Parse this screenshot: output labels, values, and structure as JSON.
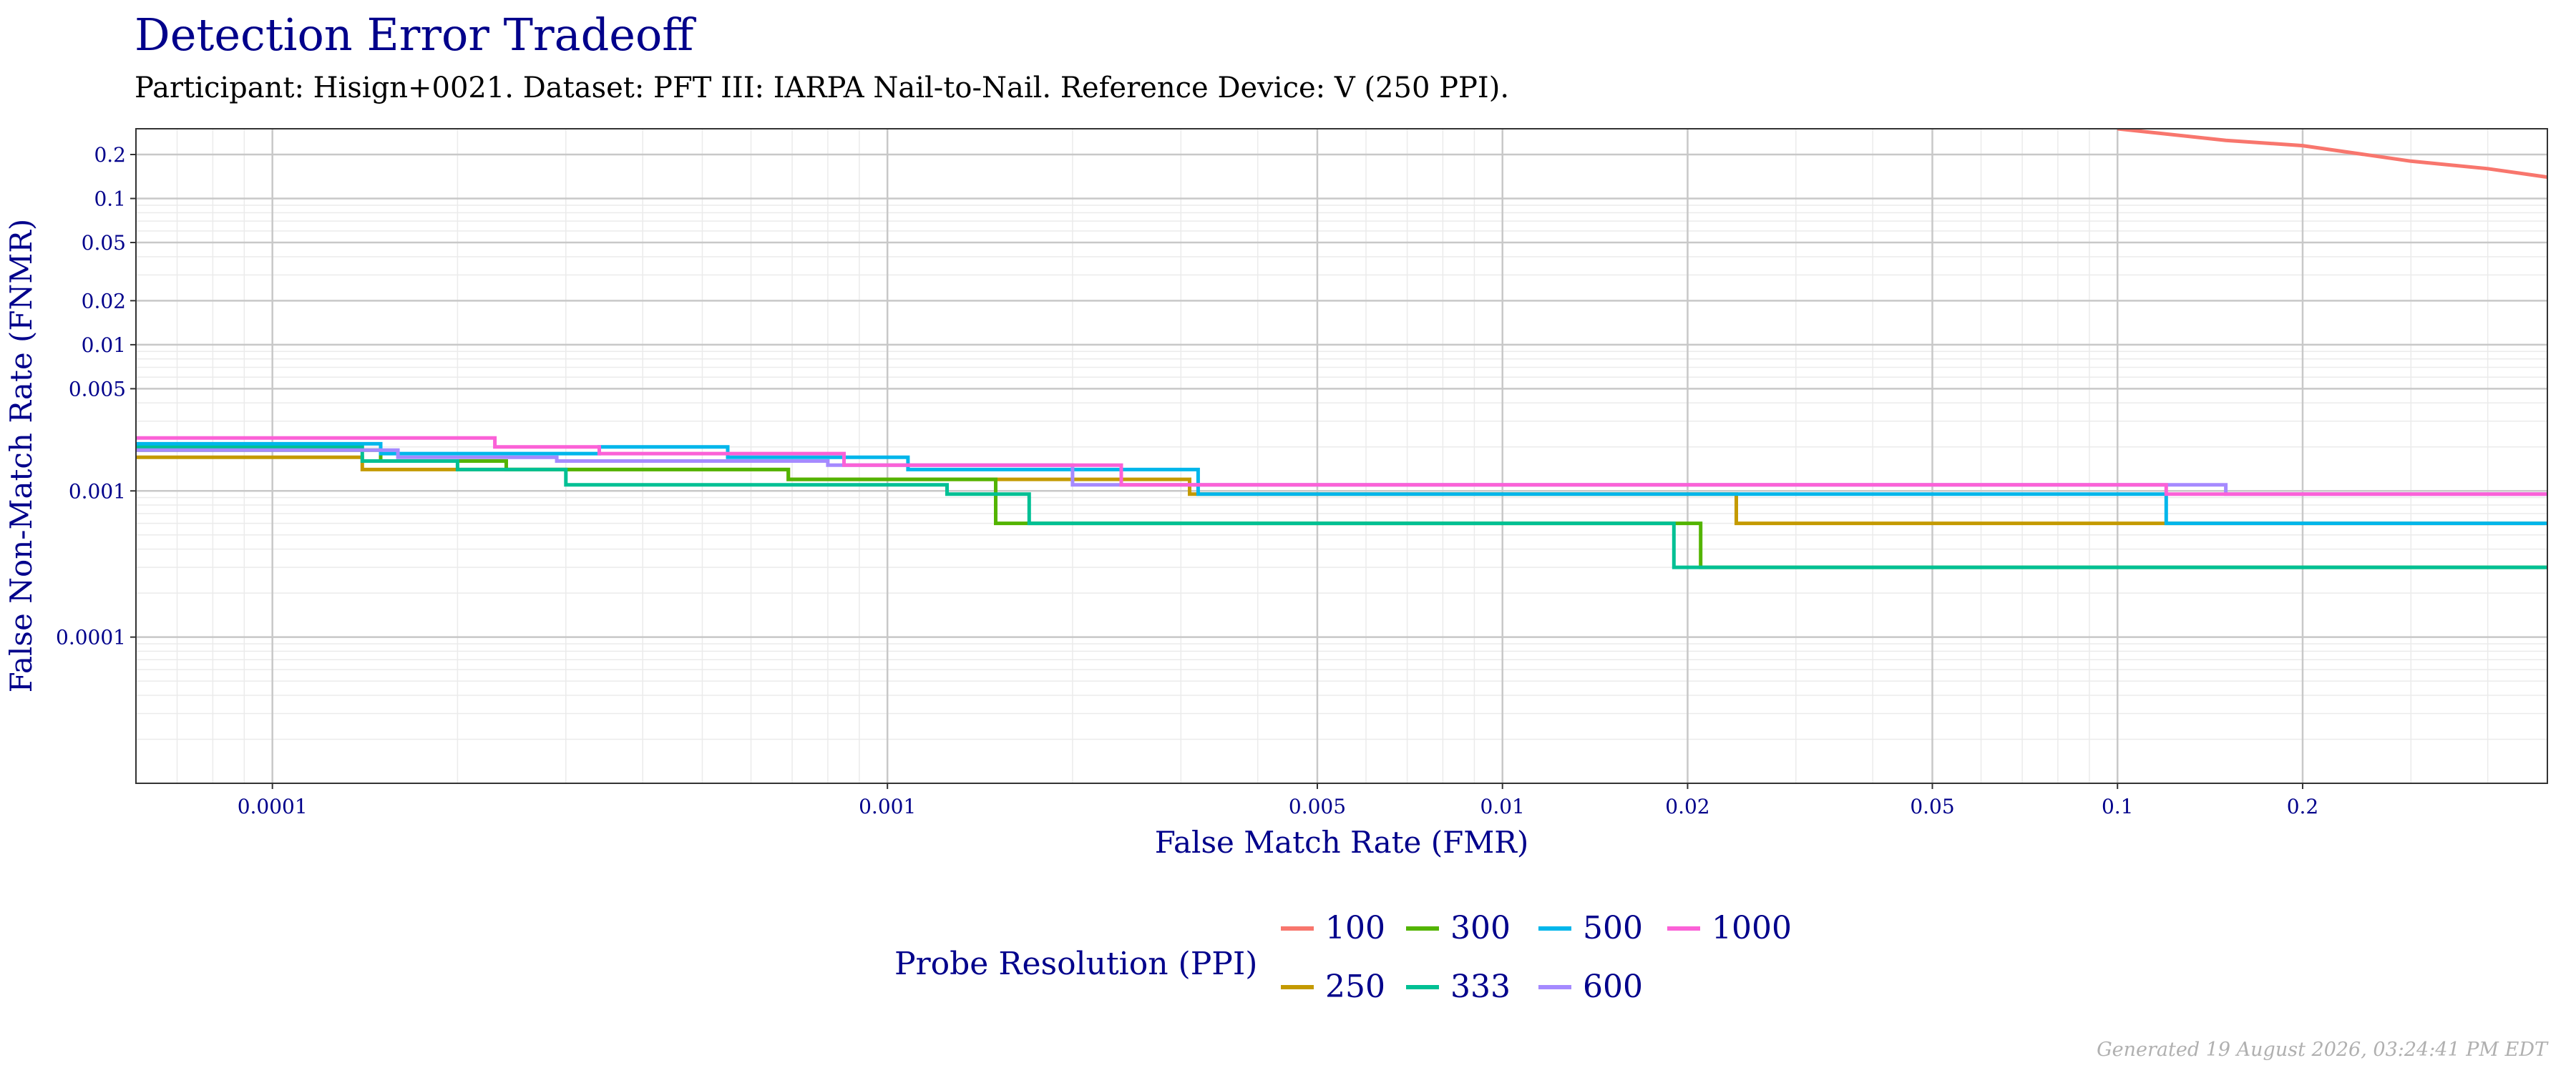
{
  "header": {
    "title": "Detection Error Tradeoff",
    "subtitle": "Participant: Hisign+0021. Dataset: PFT III: IARPA Nail-to-Nail. Reference Device: V (250 PPI)."
  },
  "footer": {
    "generated": "Generated 19 August 2026, 03:24:41 PM EDT"
  },
  "colors": {
    "title": "#00008b",
    "panel_background": "#ffffff",
    "grid_major": "#c8c8c8",
    "grid_minor": "#ebebeb"
  },
  "chart_data": {
    "type": "line",
    "step": true,
    "title": "Detection Error Tradeoff",
    "xlabel": "False Match Rate (FMR)",
    "ylabel": "False Non-Match Rate (FNMR)",
    "x_scale": "log",
    "y_scale": "log",
    "xlim": [
      6e-05,
      0.5
    ],
    "ylim": [
      1e-05,
      0.3
    ],
    "x_ticks": [
      {
        "value": 0.0001,
        "label": "0.0001"
      },
      {
        "value": 0.001,
        "label": "0.001"
      },
      {
        "value": 0.005,
        "label": "0.005"
      },
      {
        "value": 0.01,
        "label": "0.01"
      },
      {
        "value": 0.02,
        "label": "0.02"
      },
      {
        "value": 0.05,
        "label": "0.05"
      },
      {
        "value": 0.1,
        "label": "0.1"
      },
      {
        "value": 0.2,
        "label": "0.2"
      }
    ],
    "y_ticks": [
      {
        "value": 0.0001,
        "label": "0.0001"
      },
      {
        "value": 0.001,
        "label": "0.001"
      },
      {
        "value": 0.005,
        "label": "0.005"
      },
      {
        "value": 0.01,
        "label": "0.01"
      },
      {
        "value": 0.02,
        "label": "0.02"
      },
      {
        "value": 0.05,
        "label": "0.05"
      },
      {
        "value": 0.1,
        "label": "0.1"
      },
      {
        "value": 0.2,
        "label": "0.2"
      }
    ],
    "grid": true,
    "legend": {
      "title": "Probe Resolution (PPI)",
      "placement": "bottom"
    },
    "series": [
      {
        "name": "100",
        "color": "#F8766D",
        "points": [
          [
            0.1,
            0.3
          ],
          [
            0.15,
            0.25
          ],
          [
            0.2,
            0.23
          ],
          [
            0.3,
            0.18
          ],
          [
            0.4,
            0.16
          ],
          [
            0.5,
            0.14
          ]
        ]
      },
      {
        "name": "250",
        "color": "#C49A00",
        "points": [
          [
            6e-05,
            0.0017
          ],
          [
            0.00014,
            0.0017
          ],
          [
            0.00014,
            0.0014
          ],
          [
            0.00069,
            0.0014
          ],
          [
            0.00069,
            0.0012
          ],
          [
            0.0031,
            0.0012
          ],
          [
            0.0031,
            0.00095
          ],
          [
            0.024,
            0.00095
          ],
          [
            0.024,
            0.0006
          ],
          [
            0.12,
            0.0006
          ],
          [
            0.12,
            0.0006
          ],
          [
            0.5,
            0.0006
          ]
        ]
      },
      {
        "name": "300",
        "color": "#53B400",
        "points": [
          [
            6e-05,
            0.0019
          ],
          [
            0.00015,
            0.0019
          ],
          [
            0.00015,
            0.0016
          ],
          [
            0.00024,
            0.0016
          ],
          [
            0.00024,
            0.0014
          ],
          [
            0.00069,
            0.0014
          ],
          [
            0.00069,
            0.0012
          ],
          [
            0.0015,
            0.0012
          ],
          [
            0.0015,
            0.0006
          ],
          [
            0.021,
            0.0006
          ],
          [
            0.021,
            0.0003
          ],
          [
            0.5,
            0.0003
          ]
        ]
      },
      {
        "name": "333",
        "color": "#00C094",
        "points": [
          [
            6e-05,
            0.002
          ],
          [
            0.00014,
            0.002
          ],
          [
            0.00014,
            0.0016
          ],
          [
            0.0002,
            0.0016
          ],
          [
            0.0002,
            0.0014
          ],
          [
            0.0003,
            0.0014
          ],
          [
            0.0003,
            0.0011
          ],
          [
            0.00125,
            0.0011
          ],
          [
            0.00125,
            0.00095
          ],
          [
            0.0017,
            0.00095
          ],
          [
            0.0017,
            0.0006
          ],
          [
            0.019,
            0.0006
          ],
          [
            0.019,
            0.0003
          ],
          [
            0.5,
            0.0003
          ]
        ]
      },
      {
        "name": "500",
        "color": "#00B6EB",
        "points": [
          [
            6e-05,
            0.0021
          ],
          [
            0.00015,
            0.0021
          ],
          [
            0.00015,
            0.0018
          ],
          [
            0.00034,
            0.0018
          ],
          [
            0.00034,
            0.002
          ],
          [
            0.00055,
            0.002
          ],
          [
            0.00055,
            0.0017
          ],
          [
            0.00108,
            0.0017
          ],
          [
            0.00108,
            0.0014
          ],
          [
            0.0032,
            0.0014
          ],
          [
            0.0032,
            0.00095
          ],
          [
            0.12,
            0.00095
          ],
          [
            0.12,
            0.0006
          ],
          [
            0.5,
            0.0006
          ]
        ]
      },
      {
        "name": "600",
        "color": "#A58AFF",
        "points": [
          [
            6e-05,
            0.0019
          ],
          [
            0.00016,
            0.0019
          ],
          [
            0.00016,
            0.0017
          ],
          [
            0.00029,
            0.0017
          ],
          [
            0.00029,
            0.0016
          ],
          [
            0.0008,
            0.0016
          ],
          [
            0.0008,
            0.0015
          ],
          [
            0.002,
            0.0015
          ],
          [
            0.002,
            0.0011
          ],
          [
            0.15,
            0.0011
          ],
          [
            0.15,
            0.00095
          ],
          [
            0.5,
            0.00095
          ]
        ]
      },
      {
        "name": "1000",
        "color": "#FB61D7",
        "points": [
          [
            6e-05,
            0.0023
          ],
          [
            0.00023,
            0.0023
          ],
          [
            0.00023,
            0.002
          ],
          [
            0.00034,
            0.002
          ],
          [
            0.00034,
            0.0018
          ],
          [
            0.00085,
            0.0018
          ],
          [
            0.00085,
            0.0015
          ],
          [
            0.0024,
            0.0015
          ],
          [
            0.0024,
            0.0011
          ],
          [
            0.12,
            0.0011
          ],
          [
            0.12,
            0.00095
          ],
          [
            0.5,
            0.00095
          ]
        ]
      }
    ]
  }
}
